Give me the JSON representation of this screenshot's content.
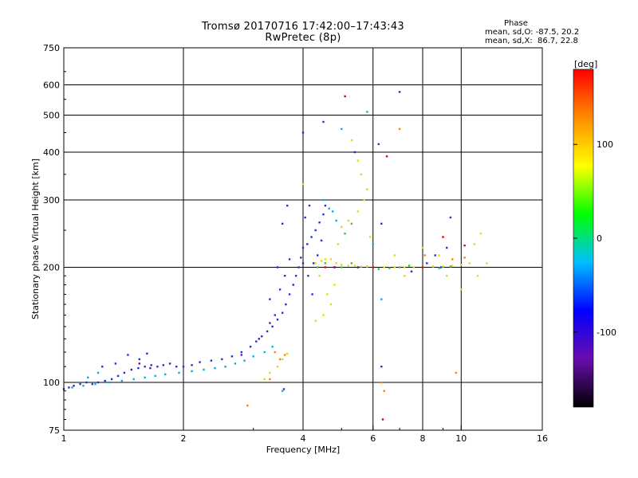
{
  "header": {
    "title_line1": "Tromsø 20170716 17:42:00–17:43:43",
    "title_line2": "RwPretec (8p)",
    "phase_label": "Phase",
    "stat_o": "mean, sd,O: -87.5, 20.2",
    "stat_x": "mean, sd,X:  86.7, 22.8"
  },
  "chart_data": {
    "type": "scatter",
    "title": "Tromsø 20170716 17:42:00–17:43:43",
    "subtitle": "RwPretec (8p)",
    "xlabel": "Frequency [MHz]",
    "ylabel": "Stationary phase Virtual Height [km]",
    "x_scale": "log",
    "y_scale": "log",
    "xlim": [
      1,
      16
    ],
    "ylim": [
      75,
      750
    ],
    "x_ticks": [
      1,
      2,
      4,
      6,
      8,
      10,
      16
    ],
    "y_ticks": [
      75,
      100,
      200,
      300,
      400,
      500,
      600,
      750
    ],
    "grid": true,
    "colorbar": {
      "label": "[deg]",
      "range": [
        -180,
        180
      ],
      "ticks": [
        100,
        0,
        -100
      ],
      "colors": [
        "#000000",
        "#6a0dad",
        "#0000ff",
        "#00bfff",
        "#00ff00",
        "#ffff00",
        "#ff8c00",
        "#ff0000"
      ]
    },
    "series": [
      {
        "color": "#2030e0",
        "values": [
          [
            1.0,
            96
          ],
          [
            1.03,
            97
          ],
          [
            1.06,
            98
          ],
          [
            1.1,
            99
          ],
          [
            1.14,
            100
          ],
          [
            1.18,
            99
          ],
          [
            1.22,
            100
          ],
          [
            1.27,
            101
          ],
          [
            1.32,
            102
          ],
          [
            1.37,
            104
          ],
          [
            1.42,
            106
          ],
          [
            1.48,
            108
          ],
          [
            1.54,
            109
          ],
          [
            1.6,
            110
          ],
          [
            1.66,
            111
          ],
          [
            1.72,
            110
          ],
          [
            1.78,
            111
          ],
          [
            1.85,
            112
          ],
          [
            1.92,
            110
          ],
          [
            2.0,
            110
          ],
          [
            2.1,
            111
          ],
          [
            2.2,
            113
          ],
          [
            2.35,
            114
          ],
          [
            2.5,
            115
          ],
          [
            2.65,
            117
          ],
          [
            2.8,
            120
          ],
          [
            2.95,
            124
          ],
          [
            3.05,
            128
          ],
          [
            3.15,
            132
          ],
          [
            3.25,
            136
          ],
          [
            3.35,
            140
          ],
          [
            3.45,
            146
          ],
          [
            3.55,
            152
          ],
          [
            3.62,
            160
          ],
          [
            3.7,
            170
          ],
          [
            3.78,
            180
          ],
          [
            3.84,
            190
          ],
          [
            3.9,
            200
          ],
          [
            3.95,
            212
          ],
          [
            4.0,
            225
          ],
          [
            4.1,
            230
          ],
          [
            4.2,
            240
          ],
          [
            4.3,
            250
          ],
          [
            4.4,
            262
          ],
          [
            4.5,
            275
          ],
          [
            4.55,
            290
          ],
          [
            1.35,
            112
          ],
          [
            1.45,
            118
          ],
          [
            1.55,
            115
          ],
          [
            1.62,
            119
          ],
          [
            1.25,
            110
          ],
          [
            3.5,
            175
          ],
          [
            3.6,
            190
          ],
          [
            3.7,
            210
          ],
          [
            3.45,
            200
          ],
          [
            3.55,
            260
          ],
          [
            3.65,
            290
          ],
          [
            4.05,
            270
          ],
          [
            4.15,
            290
          ],
          [
            4.45,
            235
          ],
          [
            4.35,
            215
          ],
          [
            4.25,
            205
          ],
          [
            4.5,
            480
          ],
          [
            4.0,
            450
          ],
          [
            4.12,
            190
          ],
          [
            4.22,
            170
          ],
          [
            5.4,
            400
          ],
          [
            6.2,
            420
          ],
          [
            6.3,
            260
          ],
          [
            7.5,
            195
          ],
          [
            8.2,
            205
          ],
          [
            8.6,
            215
          ],
          [
            9.4,
            270
          ],
          [
            9.2,
            225
          ],
          [
            8.9,
            200
          ],
          [
            3.58,
            96
          ],
          [
            3.4,
            150
          ],
          [
            3.3,
            165
          ]
        ]
      },
      {
        "color": "#00b0e0",
        "values": [
          [
            1.05,
            97
          ],
          [
            1.12,
            98
          ],
          [
            1.2,
            99
          ],
          [
            1.3,
            100
          ],
          [
            1.4,
            101
          ],
          [
            1.5,
            102
          ],
          [
            1.6,
            103
          ],
          [
            1.7,
            104
          ],
          [
            1.8,
            105
          ],
          [
            1.95,
            106
          ],
          [
            2.1,
            107
          ],
          [
            2.25,
            108
          ],
          [
            2.4,
            109
          ],
          [
            2.55,
            110
          ],
          [
            2.7,
            112
          ],
          [
            2.85,
            114
          ],
          [
            3.0,
            117
          ],
          [
            3.2,
            120
          ],
          [
            3.35,
            124
          ],
          [
            1.15,
            103
          ],
          [
            1.22,
            106
          ],
          [
            3.55,
            95
          ],
          [
            4.5,
            300
          ],
          [
            4.65,
            285
          ],
          [
            4.75,
            280
          ],
          [
            4.85,
            265
          ],
          [
            5.0,
            460
          ],
          [
            5.8,
            510
          ],
          [
            6.0,
            230
          ],
          [
            6.3,
            165
          ]
        ]
      },
      {
        "color": "#e0e000",
        "values": [
          [
            4.3,
            205
          ],
          [
            4.45,
            208
          ],
          [
            4.55,
            210
          ],
          [
            4.7,
            210
          ],
          [
            4.85,
            205
          ],
          [
            5.0,
            203
          ],
          [
            5.2,
            202
          ],
          [
            5.4,
            202
          ],
          [
            5.6,
            201
          ],
          [
            5.8,
            201
          ],
          [
            6.0,
            200
          ],
          [
            6.4,
            200
          ],
          [
            6.8,
            200
          ],
          [
            7.2,
            200
          ],
          [
            7.6,
            200
          ],
          [
            8.0,
            200
          ],
          [
            8.5,
            201
          ],
          [
            9.0,
            201
          ],
          [
            9.5,
            202
          ],
          [
            10.0,
            203
          ],
          [
            10.5,
            205
          ],
          [
            4.4,
            190
          ],
          [
            4.6,
            170
          ],
          [
            4.7,
            160
          ],
          [
            4.5,
            150
          ],
          [
            4.3,
            145
          ],
          [
            4.8,
            180
          ],
          [
            4.9,
            230
          ],
          [
            5.0,
            255
          ],
          [
            5.2,
            265
          ],
          [
            5.5,
            280
          ],
          [
            5.7,
            300
          ],
          [
            5.8,
            320
          ],
          [
            5.6,
            350
          ],
          [
            5.5,
            380
          ],
          [
            5.3,
            430
          ],
          [
            5.1,
            560
          ],
          [
            5.9,
            240
          ],
          [
            6.8,
            215
          ],
          [
            7.2,
            190
          ],
          [
            3.2,
            102
          ],
          [
            3.3,
            106
          ],
          [
            3.45,
            110
          ],
          [
            3.55,
            115
          ],
          [
            3.65,
            119
          ],
          [
            4.0,
            330
          ],
          [
            8.0,
            225
          ],
          [
            8.8,
            215
          ],
          [
            9.2,
            190
          ],
          [
            10.0,
            175
          ],
          [
            10.8,
            230
          ],
          [
            11.2,
            245
          ],
          [
            11.6,
            205
          ],
          [
            11.0,
            190
          ]
        ]
      },
      {
        "color": "#40c040",
        "values": [
          [
            4.35,
            200
          ],
          [
            4.55,
            205
          ],
          [
            5.0,
            200
          ],
          [
            5.3,
            205
          ],
          [
            5.5,
            200
          ],
          [
            6.2,
            198
          ],
          [
            6.6,
            199
          ],
          [
            7.0,
            200
          ],
          [
            7.4,
            202
          ],
          [
            5.1,
            245
          ],
          [
            5.3,
            260
          ],
          [
            8.8,
            199
          ],
          [
            9.4,
            201
          ]
        ]
      },
      {
        "color": "#ff8000",
        "values": [
          [
            3.5,
            115
          ],
          [
            3.6,
            118
          ],
          [
            3.4,
            120
          ],
          [
            2.9,
            87
          ],
          [
            3.3,
            102
          ],
          [
            6.3,
            100
          ],
          [
            6.4,
            95
          ],
          [
            7.0,
            460
          ],
          [
            9.5,
            210
          ],
          [
            10.2,
            212
          ],
          [
            8.1,
            215
          ],
          [
            9.7,
            106
          ]
        ]
      },
      {
        "color": "#e00000",
        "values": [
          [
            4.55,
            200
          ],
          [
            4.8,
            200
          ],
          [
            6.0,
            200
          ],
          [
            6.35,
            80
          ],
          [
            6.5,
            390
          ],
          [
            8.0,
            200
          ],
          [
            9.0,
            240
          ],
          [
            10.2,
            228
          ],
          [
            5.1,
            560
          ]
        ]
      },
      {
        "color": "#6a0dad",
        "values": [
          [
            1.55,
            112
          ],
          [
            1.65,
            109
          ],
          [
            2.8,
            118
          ],
          [
            3.1,
            130
          ],
          [
            3.3,
            143
          ],
          [
            4.0,
            205
          ],
          [
            4.8,
            200
          ],
          [
            5.5,
            200
          ],
          [
            7.0,
            575
          ],
          [
            6.3,
            110
          ]
        ]
      }
    ]
  }
}
